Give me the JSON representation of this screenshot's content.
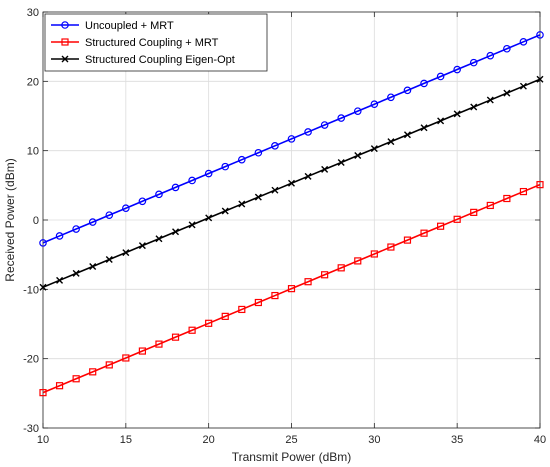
{
  "chart_data": {
    "type": "line",
    "xlabel": "Transmit Power (dBm)",
    "ylabel": "Received Power (dBm)",
    "xlim": [
      10,
      40
    ],
    "ylim": [
      -30,
      30
    ],
    "xticks": [
      10,
      15,
      20,
      25,
      30,
      35,
      40
    ],
    "yticks": [
      -30,
      -20,
      -10,
      0,
      10,
      20,
      30
    ],
    "grid": true,
    "legend_position": "top-left",
    "x": [
      10,
      11,
      12,
      13,
      14,
      15,
      16,
      17,
      18,
      19,
      20,
      21,
      22,
      23,
      24,
      25,
      26,
      27,
      28,
      29,
      30,
      31,
      32,
      33,
      34,
      35,
      36,
      37,
      38,
      39,
      40
    ],
    "series": [
      {
        "name": "Uncoupled + MRT",
        "color": "#0000ff",
        "marker": "circle",
        "values": [
          -3.3,
          -2.3,
          -1.3,
          -0.3,
          0.7,
          1.7,
          2.7,
          3.7,
          4.7,
          5.7,
          6.7,
          7.7,
          8.7,
          9.7,
          10.7,
          11.7,
          12.7,
          13.7,
          14.7,
          15.7,
          16.7,
          17.7,
          18.7,
          19.7,
          20.7,
          21.7,
          22.7,
          23.7,
          24.7,
          25.7,
          26.7
        ]
      },
      {
        "name": "Structured Coupling + MRT",
        "color": "#ff0000",
        "marker": "square",
        "values": [
          -24.9,
          -23.9,
          -22.9,
          -21.9,
          -20.9,
          -19.9,
          -18.9,
          -17.9,
          -16.9,
          -15.9,
          -14.9,
          -13.9,
          -12.9,
          -11.9,
          -10.9,
          -9.9,
          -8.9,
          -7.9,
          -6.9,
          -5.9,
          -4.9,
          -3.9,
          -2.9,
          -1.9,
          -0.9,
          0.1,
          1.1,
          2.1,
          3.1,
          4.1,
          5.1
        ]
      },
      {
        "name": "Structured Coupling Eigen-Opt",
        "color": "#000000",
        "marker": "x",
        "values": [
          -9.7,
          -8.7,
          -7.7,
          -6.7,
          -5.7,
          -4.7,
          -3.7,
          -2.7,
          -1.7,
          -0.7,
          0.3,
          1.3,
          2.3,
          3.3,
          4.3,
          5.3,
          6.3,
          7.3,
          8.3,
          9.3,
          10.3,
          11.3,
          12.3,
          13.3,
          14.3,
          15.3,
          16.3,
          17.3,
          18.3,
          19.3,
          20.3
        ]
      }
    ]
  }
}
